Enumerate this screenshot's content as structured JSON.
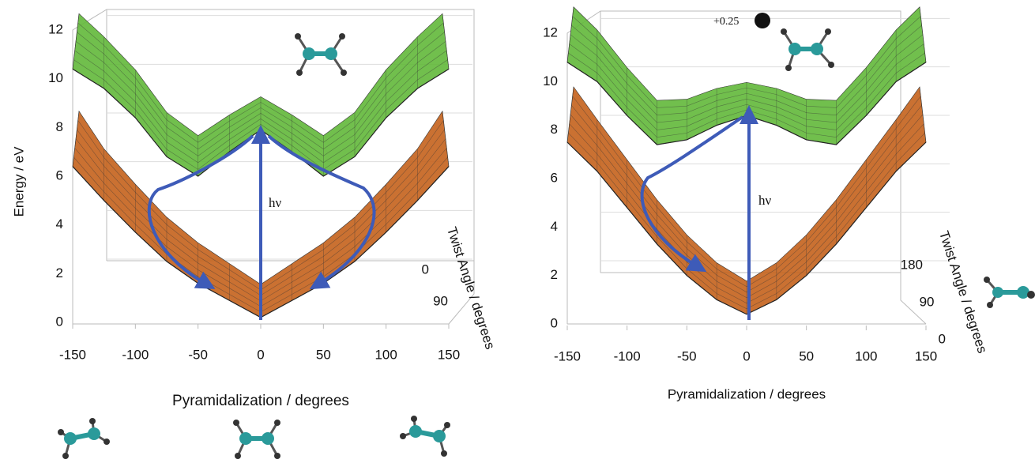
{
  "chart_data": [
    {
      "type": "surface",
      "xlabel": "Pyramidalization / degrees",
      "ylabel": "Energy / eV",
      "zlabel": "Twist Angle / degrees",
      "annotation": "hν",
      "x": [
        -150,
        -125,
        -100,
        -75,
        -50,
        -25,
        0,
        25,
        50,
        75,
        100,
        125,
        150
      ],
      "series": [
        {
          "color": "#c4621c",
          "values": [
            6.4,
            5.0,
            3.7,
            2.5,
            1.6,
            0.9,
            0.2,
            0.9,
            1.6,
            2.5,
            3.7,
            5.0,
            6.4
          ]
        },
        {
          "color": "#62b83a",
          "values": [
            10.4,
            9.6,
            8.4,
            6.8,
            6.0,
            7.0,
            7.9,
            7.0,
            6.0,
            6.8,
            8.4,
            9.6,
            10.4
          ]
        }
      ],
      "xlim": [
        -150,
        150
      ],
      "xticks": [
        -150,
        -100,
        -50,
        0,
        50,
        100,
        150
      ],
      "ylim": [
        0,
        12
      ],
      "yticks": [
        0,
        2,
        4,
        6,
        8,
        10,
        12
      ],
      "zlim": [
        0,
        90
      ],
      "zticks": [
        0,
        90
      ],
      "grid": true
    },
    {
      "type": "surface",
      "xlabel": "Pyramidalization / degrees",
      "zlabel": "Twist Angle / degrees",
      "annotation": "hν",
      "charge_label": "+0.25",
      "x": [
        -150,
        -125,
        -100,
        -75,
        -50,
        -25,
        0,
        25,
        50,
        75,
        100,
        125,
        150
      ],
      "series": [
        {
          "color": "#c4621c",
          "values": [
            7.5,
            6.3,
            4.8,
            3.3,
            2.0,
            1.0,
            0.4,
            1.0,
            2.0,
            3.3,
            4.8,
            6.3,
            7.5
          ]
        },
        {
          "color": "#62b83a",
          "values": [
            10.8,
            10.0,
            8.6,
            7.4,
            7.6,
            8.2,
            8.6,
            8.2,
            7.6,
            7.4,
            8.6,
            10.0,
            10.8
          ]
        }
      ],
      "xlim": [
        -150,
        150
      ],
      "xticks": [
        -150,
        -100,
        -50,
        0,
        50,
        100,
        150
      ],
      "ylim": [
        0,
        12
      ],
      "yticks": [
        0,
        2,
        4,
        6,
        8,
        10,
        12
      ],
      "zlim": [
        0,
        180
      ],
      "zticks": [
        0,
        90,
        180
      ],
      "grid": true
    }
  ]
}
